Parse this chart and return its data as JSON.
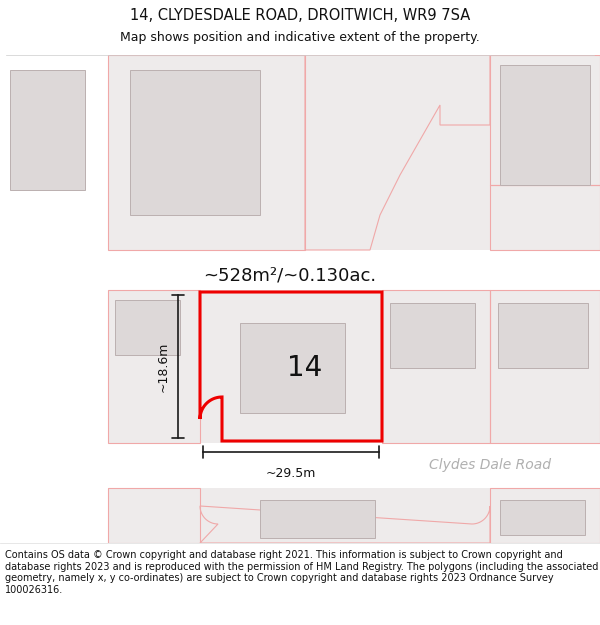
{
  "title_line1": "14, CLYDESDALE ROAD, DROITWICH, WR9 7SA",
  "title_line2": "Map shows position and indicative extent of the property.",
  "footer_text": "Contains OS data © Crown copyright and database right 2021. This information is subject to Crown copyright and database rights 2023 and is reproduced with the permission of HM Land Registry. The polygons (including the associated geometry, namely x, y co-ordinates) are subject to Crown copyright and database rights 2023 Ordnance Survey 100026316.",
  "bg_color": "#f2eeee",
  "map_bg": "#eeebeb",
  "road_color": "#ffffff",
  "building_fill": "#ddd8d8",
  "building_stroke": "#bbb0b0",
  "parcel_outline_color": "#f0a8a8",
  "parcel_outline_color2": "#e09090",
  "highlight_color": "#ee0000",
  "label_14": "14",
  "area_label": "~528m²/~0.130ac.",
  "dim_width": "~29.5m",
  "dim_height": "~18.6m",
  "road_label": "Clydes Dale Road",
  "title_fontsize": 10.5,
  "subtitle_fontsize": 9,
  "footer_fontsize": 7.0
}
